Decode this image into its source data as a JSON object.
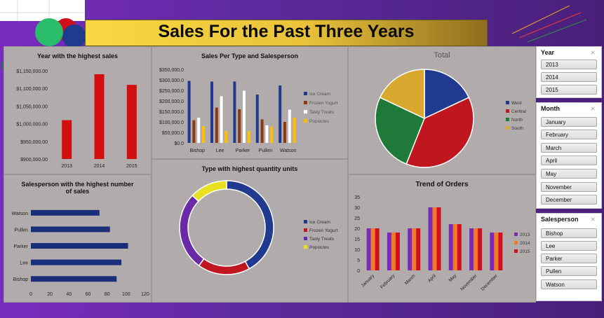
{
  "dashboard": {
    "title": "Sales For the Past Three Years"
  },
  "charts": {
    "year_high": {
      "title": "Year with the highest sales",
      "type": "bar",
      "categories": [
        "2013",
        "2014",
        "2015"
      ],
      "values": [
        1010000,
        1140000,
        1110000
      ],
      "ylim": [
        900000,
        1150000
      ],
      "yticks": [
        "$1,150,000.00",
        "$1,100,000.00",
        "$1,050,000.00",
        "$1,000,000.00",
        "$950,000.00",
        "$900,000.00"
      ],
      "color": "#d10f0f"
    },
    "type_sales": {
      "title": "Sales Per Type and Salesperson",
      "type": "bar",
      "categories": [
        "Bishop",
        "Lee",
        "Parker",
        "Pullen",
        "Watson"
      ],
      "series": [
        {
          "name": "Ice Cream",
          "color": "#1f3a8f",
          "values": [
            295000,
            292000,
            292000,
            230000,
            273000
          ]
        },
        {
          "name": "Frozen Yogurt",
          "color": "#8b3a12",
          "values": [
            108000,
            168000,
            160000,
            112000,
            100000
          ]
        },
        {
          "name": "Tasty Treats",
          "color": "#ffffff",
          "values": [
            120000,
            222000,
            248000,
            84000,
            158000
          ]
        },
        {
          "name": "Popsicles",
          "color": "#ffc000",
          "values": [
            80000,
            56000,
            56000,
            78000,
            120000
          ]
        }
      ],
      "ylim": [
        0,
        350000
      ],
      "yticks": [
        "$350,000.0",
        "$300,000.0",
        "$250,000.0",
        "$200,000.0",
        "$150,000.0",
        "$100,000.0",
        "$50,000.0",
        "$0.0"
      ]
    },
    "region_pie": {
      "title": "Total",
      "type": "pie",
      "slices": [
        {
          "name": "West",
          "value": 18,
          "color": "#1f3a8f"
        },
        {
          "name": "Central",
          "value": 38,
          "color": "#c0161f"
        },
        {
          "name": "North",
          "value": 26,
          "color": "#1f7a3a"
        },
        {
          "name": "South",
          "value": 18,
          "color": "#d9a82f"
        }
      ]
    },
    "salesperson": {
      "title": "Salesperson with the highest number of sales",
      "type": "bar",
      "categories": [
        "Watson",
        "Pullen",
        "Parker",
        "Lee",
        "Bishop"
      ],
      "values": [
        72,
        83,
        102,
        95,
        90
      ],
      "xlim": [
        0,
        120
      ],
      "xticks": [
        "0",
        "20",
        "40",
        "60",
        "80",
        "100",
        "120"
      ],
      "color": "#1a2f7a"
    },
    "qty_donut": {
      "title": "Type with highest quantity units",
      "type": "pie",
      "slices": [
        {
          "name": "Ice Cream",
          "value": 42,
          "color": "#1f3a8f"
        },
        {
          "name": "Frozen Yogurt",
          "value": 18,
          "color": "#c0161f"
        },
        {
          "name": "Tasty Treats",
          "value": 27,
          "color": "#6a2aa8"
        },
        {
          "name": "Popsicles",
          "value": 13,
          "color": "#e8e020"
        }
      ]
    },
    "orders": {
      "title": "Trend of Orders",
      "type": "bar",
      "categories": [
        "January",
        "February",
        "March",
        "April",
        "May",
        "November",
        "December"
      ],
      "series": [
        {
          "name": "2013",
          "color": "#7a2ab5",
          "values": [
            20,
            18,
            20,
            30,
            22,
            20,
            18
          ]
        },
        {
          "name": "2014",
          "color": "#f07a2a",
          "values": [
            20,
            18,
            20,
            30,
            22,
            20,
            18
          ]
        },
        {
          "name": "2015",
          "color": "#d10f1f",
          "values": [
            20,
            18,
            20,
            30,
            22,
            20,
            18
          ]
        }
      ],
      "ylim": [
        0,
        35
      ],
      "yticks": [
        "35",
        "30",
        "25",
        "20",
        "15",
        "10",
        "5",
        "0"
      ]
    }
  },
  "slicers": {
    "year": {
      "label": "Year",
      "items": [
        "2013",
        "2014",
        "2015"
      ]
    },
    "month": {
      "label": "Month",
      "items": [
        "January",
        "February",
        "March",
        "April",
        "May",
        "November",
        "December"
      ]
    },
    "salesperson": {
      "label": "Salesperson",
      "items": [
        "Bishop",
        "Lee",
        "Parker",
        "Pullen",
        "Watson"
      ]
    }
  }
}
